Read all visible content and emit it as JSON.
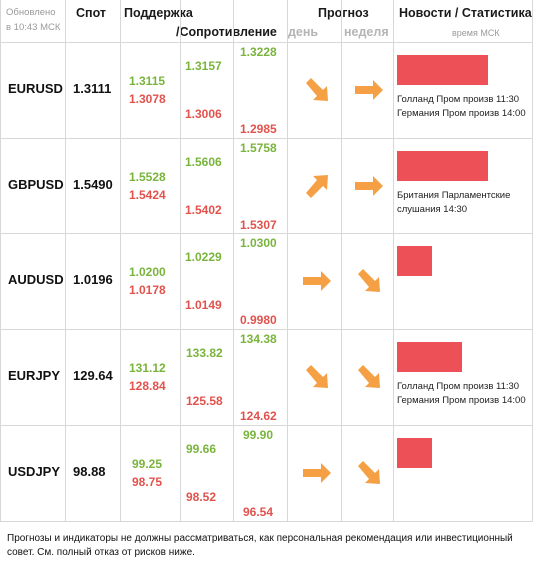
{
  "header": {
    "updated_line1": "Обновлено",
    "updated_line2": "в 10:43 МСК",
    "spot": "Спот",
    "support": "Поддержка",
    "resistance": "/Сопротивление",
    "forecast": "Прогноз",
    "day": "день",
    "week": "неделя",
    "news": "Новости / Статистика",
    "time_msk": "время МСК"
  },
  "colors": {
    "green": "#79b43c",
    "red": "#e2524d",
    "arrow": "#f5a045",
    "news_bar": "#ee5058"
  },
  "rows": [
    {
      "pair": "EURUSD",
      "spot": "1.3111",
      "s1g": "1.3115",
      "s1r": "1.3078",
      "s2g": "1.3157",
      "s2r": "1.3006",
      "s3g": "1.3228",
      "s3r": "1.2985",
      "day_dir": "down-right-icon",
      "week_dir": "right-icon",
      "news_level": 0.7,
      "news": [
        "Голланд Пром произв 11:30",
        "Германия Пром произв 14:00"
      ]
    },
    {
      "pair": "GBPUSD",
      "spot": "1.5490",
      "s1g": "1.5528",
      "s1r": "1.5424",
      "s2g": "1.5606",
      "s2r": "1.5402",
      "s3g": "1.5758",
      "s3r": "1.5307",
      "day_dir": "up-right-icon",
      "week_dir": "right-icon",
      "news_level": 0.7,
      "news": [
        "Британия Парламентские",
        "слушания 14:30"
      ]
    },
    {
      "pair": "AUDUSD",
      "spot": "1.0196",
      "s1g": "1.0200",
      "s1r": "1.0178",
      "s2g": "1.0229",
      "s2r": "1.0149",
      "s3g": "1.0300",
      "s3r": "0.9980",
      "day_dir": "right-icon",
      "week_dir": "down-right-icon",
      "news_level": 0.27,
      "news": []
    },
    {
      "pair": "EURJPY",
      "spot": "129.64",
      "s1g": "131.12",
      "s1r": "128.84",
      "s2g": "133.82",
      "s2r": "125.58",
      "s3g": "134.38",
      "s3r": "124.62",
      "day_dir": "down-right-icon",
      "week_dir": "down-right-icon",
      "news_level": 0.5,
      "news": [
        "Голланд Пром произв 11:30",
        "Германия Пром произв 14:00"
      ]
    },
    {
      "pair": "USDJPY",
      "spot": "98.88",
      "s1g": "99.25",
      "s1r": "98.75",
      "s2g": "99.66",
      "s2r": "98.52",
      "s3g": "99.90",
      "s3r": "96.54",
      "day_dir": "right-icon",
      "week_dir": "down-right-icon",
      "news_level": 0.27,
      "news": []
    }
  ],
  "footer": "Прогнозы и индикаторы не должны рассматриваться, как персональная рекомендация или инвестиционный совет. См. полный отказ от рисков ниже."
}
